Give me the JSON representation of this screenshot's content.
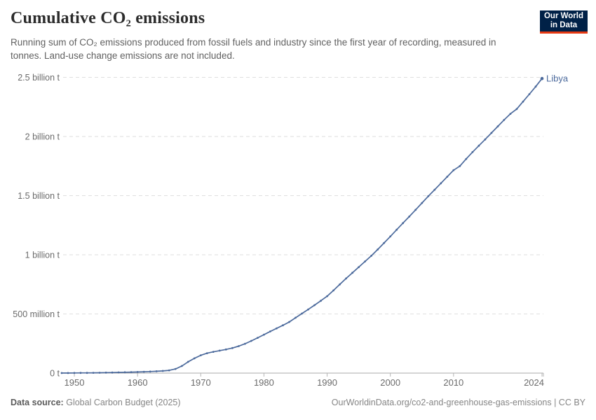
{
  "header": {
    "title": "Cumulative CO₂ emissions",
    "subtitle": "Running sum of CO₂ emissions produced from fossil fuels and industry since the first year of recording, measured in tonnes. Land-use change emissions are not included.",
    "logo": {
      "line1": "Our World",
      "line2": "in Data"
    }
  },
  "footer": {
    "source_label": "Data source:",
    "source_value": "Global Carbon Budget (2025)",
    "attribution": "OurWorldinData.org/co2-and-greenhouse-gas-emissions | CC BY"
  },
  "colors": {
    "series": "#4C6A9C",
    "gridline": "#dedede",
    "axis_line": "#a9a9a9",
    "tick_mark": "#b5b5b5",
    "axis_text": "#6b6b6b",
    "logo_bg": "#002147",
    "logo_accent": "#e63912"
  },
  "chart_data": {
    "type": "line",
    "title": "Cumulative CO₂ emissions",
    "entity": "Libya",
    "unit": "tonnes",
    "values_unit": "million tonnes",
    "xlim": [
      1948,
      2024
    ],
    "ylim_million_t": [
      0,
      2500
    ],
    "grid": "horizontal dashed",
    "legend_position": "end-of-line label",
    "x_ticks": [
      1950,
      1960,
      1970,
      1980,
      1990,
      2000,
      2010,
      2024
    ],
    "y_ticks": [
      {
        "value": 0,
        "label": "0 t"
      },
      {
        "value": 500,
        "label": "500 million t"
      },
      {
        "value": 1000,
        "label": "1 billion t"
      },
      {
        "value": 1500,
        "label": "1.5 billion t"
      },
      {
        "value": 2000,
        "label": "2 billion t"
      },
      {
        "value": 2500,
        "label": "2.5 billion t"
      }
    ],
    "x": [
      1948,
      1949,
      1950,
      1951,
      1952,
      1953,
      1954,
      1955,
      1956,
      1957,
      1958,
      1959,
      1960,
      1961,
      1962,
      1963,
      1964,
      1965,
      1966,
      1967,
      1968,
      1969,
      1970,
      1971,
      1972,
      1973,
      1974,
      1975,
      1976,
      1977,
      1978,
      1979,
      1980,
      1981,
      1982,
      1983,
      1984,
      1985,
      1986,
      1987,
      1988,
      1989,
      1990,
      1991,
      1992,
      1993,
      1994,
      1995,
      1996,
      1997,
      1998,
      1999,
      2000,
      2001,
      2002,
      2003,
      2004,
      2005,
      2006,
      2007,
      2008,
      2009,
      2010,
      2011,
      2012,
      2013,
      2014,
      2015,
      2016,
      2017,
      2018,
      2019,
      2020,
      2021,
      2022,
      2023,
      2024
    ],
    "values": [
      0.3,
      0.6,
      1,
      1.5,
      2,
      2.5,
      3,
      4,
      5,
      6,
      7,
      8,
      9.5,
      11,
      13,
      15.5,
      18.5,
      23,
      35,
      60,
      95,
      125,
      150,
      168,
      180,
      190,
      200,
      212,
      228,
      248,
      272,
      298,
      325,
      352,
      378,
      404,
      432,
      468,
      503,
      538,
      574,
      611,
      650,
      699,
      750,
      800,
      848,
      896,
      944,
      992,
      1045,
      1100,
      1155,
      1212,
      1268,
      1323,
      1380,
      1438,
      1495,
      1550,
      1605,
      1660,
      1715,
      1750,
      1810,
      1868,
      1922,
      1975,
      2030,
      2085,
      2140,
      2192,
      2232,
      2295,
      2358,
      2422,
      2490
    ]
  }
}
